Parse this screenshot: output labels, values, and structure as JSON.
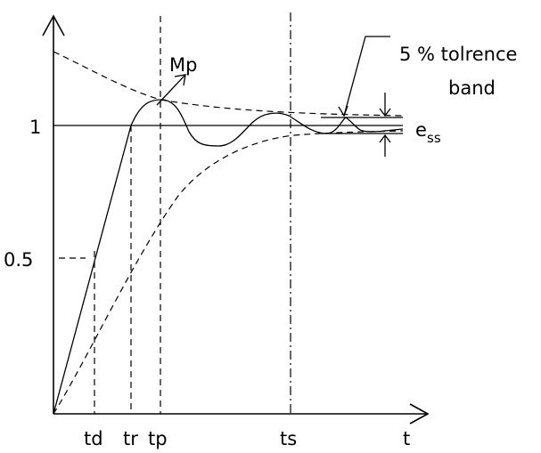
{
  "labels": {
    "mp": "Mp",
    "tolerance_line1": "5 % tolrence",
    "tolerance_line2": "band",
    "ess_main": "e",
    "ess_sub": "ss",
    "y_one": "1",
    "y_half": "0.5",
    "td": "td",
    "tr": "tr",
    "tp": "tp",
    "ts": "ts",
    "t": "t"
  }
}
